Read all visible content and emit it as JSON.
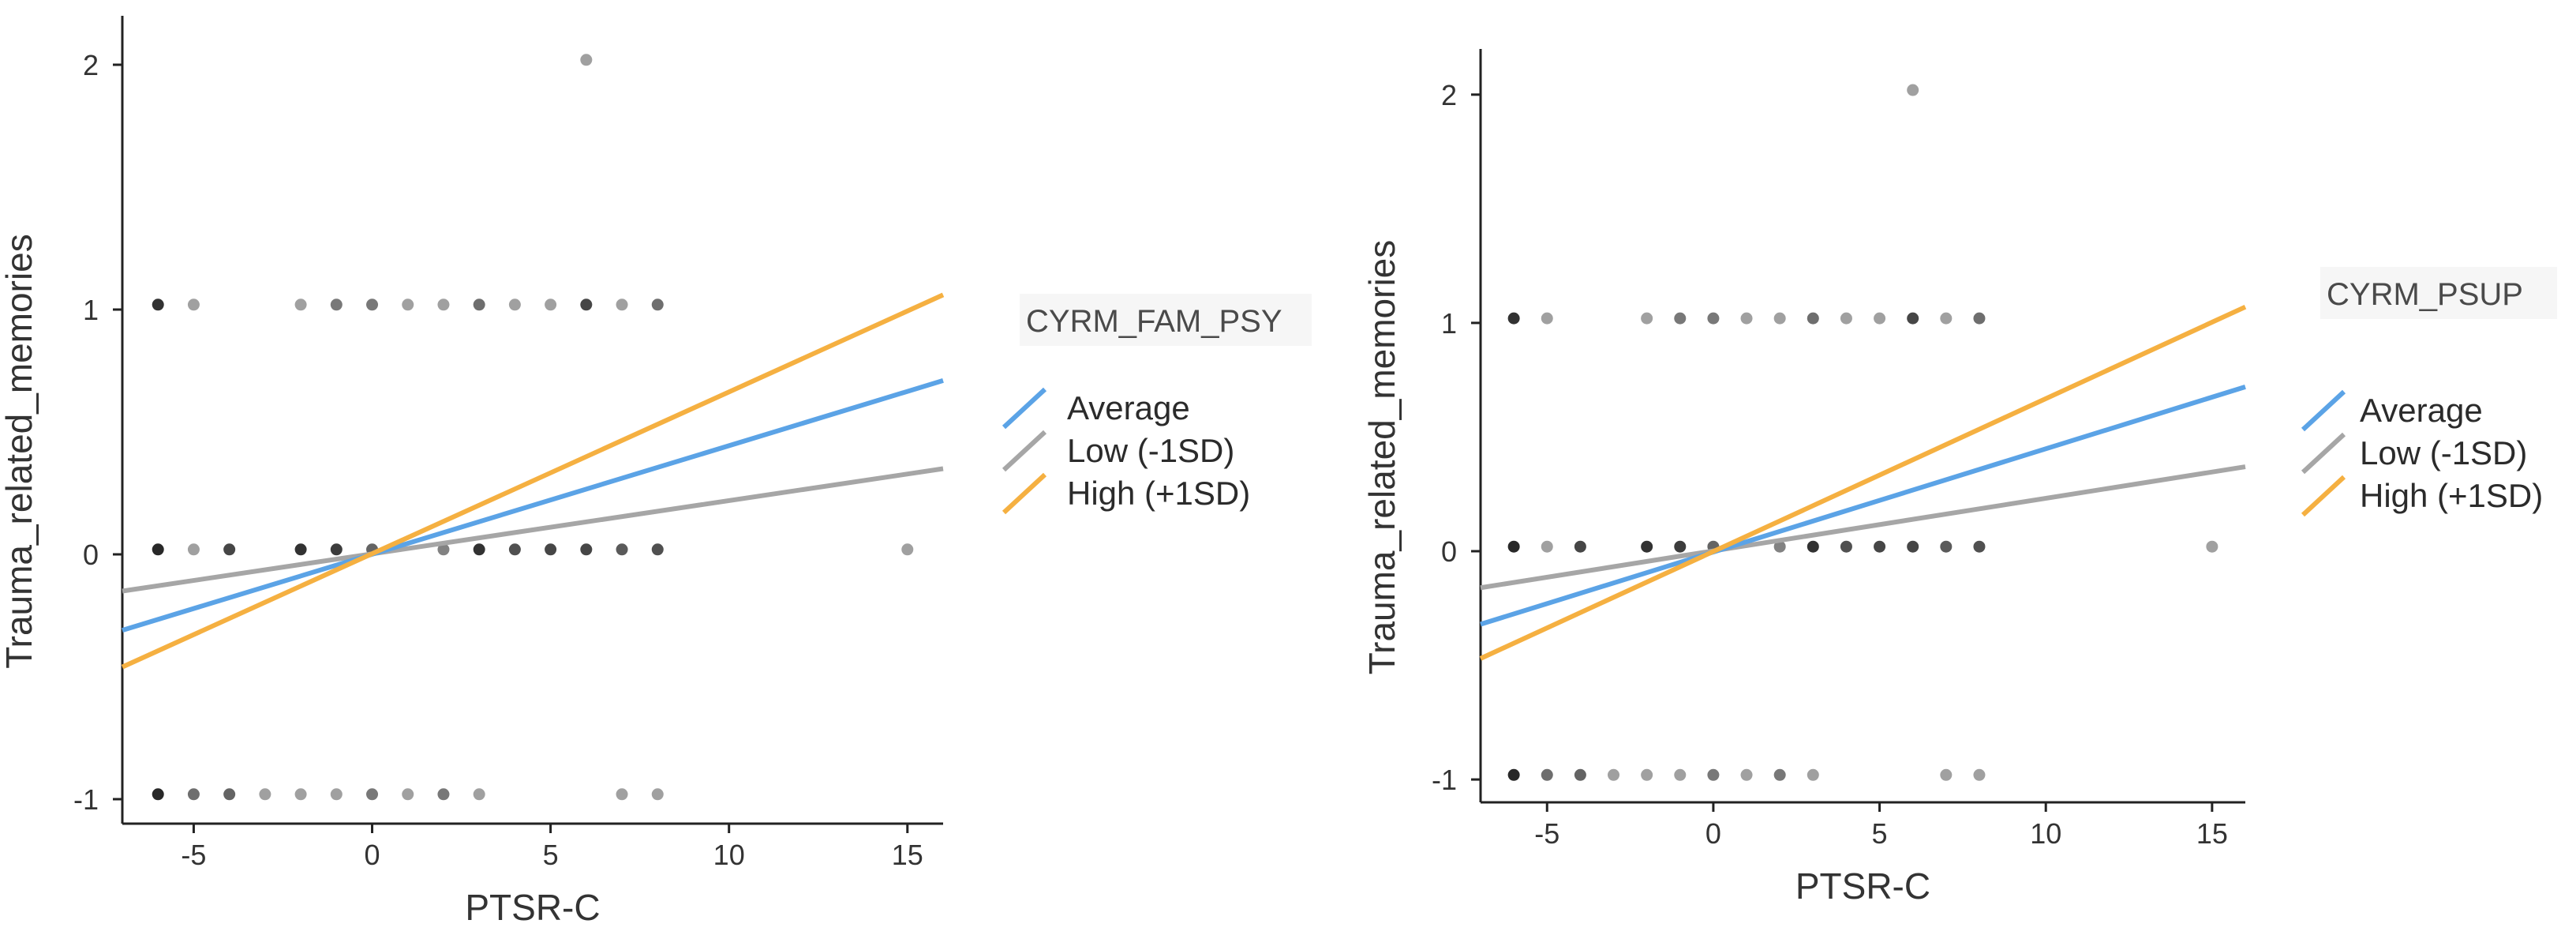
{
  "chart_data": [
    {
      "type": "scatter",
      "title": "",
      "xlabel": "PTSR-C",
      "ylabel": "Trauma_related_memories",
      "xlim": [
        -7,
        16
      ],
      "ylim": [
        -1.1,
        2.2
      ],
      "xticks": [
        -5,
        0,
        5,
        10,
        15
      ],
      "yticks": [
        -1,
        0,
        1,
        2
      ],
      "grid": false,
      "legend_title": "CYRM_FAM_PSY",
      "legend_position": "right",
      "series": [
        {
          "name": "Average",
          "type": "line",
          "color": "#5ba3e6",
          "x": [
            -7,
            16
          ],
          "y": [
            -0.31,
            0.71
          ]
        },
        {
          "name": "Low (-1SD)",
          "type": "line",
          "color": "#a6a6a6",
          "x": [
            -7,
            16
          ],
          "y": [
            -0.15,
            0.35
          ]
        },
        {
          "name": "High (+1SD)",
          "type": "line",
          "color": "#f5b041",
          "x": [
            -7,
            16
          ],
          "y": [
            -0.46,
            1.06
          ]
        }
      ],
      "points": [
        {
          "x": -6,
          "y": 1.02,
          "shade": 0.85
        },
        {
          "x": -5,
          "y": 1.02,
          "shade": 0.3
        },
        {
          "x": -2,
          "y": 1.02,
          "shade": 0.3
        },
        {
          "x": -1,
          "y": 1.02,
          "shade": 0.5
        },
        {
          "x": 0,
          "y": 1.02,
          "shade": 0.5
        },
        {
          "x": 1,
          "y": 1.02,
          "shade": 0.3
        },
        {
          "x": 2,
          "y": 1.02,
          "shade": 0.3
        },
        {
          "x": 3,
          "y": 1.02,
          "shade": 0.55
        },
        {
          "x": 4,
          "y": 1.02,
          "shade": 0.3
        },
        {
          "x": 5,
          "y": 1.02,
          "shade": 0.3
        },
        {
          "x": 6,
          "y": 1.02,
          "shade": 0.75
        },
        {
          "x": 7,
          "y": 1.02,
          "shade": 0.3
        },
        {
          "x": 8,
          "y": 1.02,
          "shade": 0.55
        },
        {
          "x": -6,
          "y": 0.02,
          "shade": 0.9
        },
        {
          "x": -5,
          "y": 0.02,
          "shade": 0.3
        },
        {
          "x": -4,
          "y": 0.02,
          "shade": 0.75
        },
        {
          "x": -2,
          "y": 0.02,
          "shade": 0.85
        },
        {
          "x": -1,
          "y": 0.02,
          "shade": 0.8
        },
        {
          "x": 0,
          "y": 0.02,
          "shade": 0.6
        },
        {
          "x": 2,
          "y": 0.02,
          "shade": 0.45
        },
        {
          "x": 3,
          "y": 0.02,
          "shade": 0.85
        },
        {
          "x": 4,
          "y": 0.02,
          "shade": 0.7
        },
        {
          "x": 5,
          "y": 0.02,
          "shade": 0.75
        },
        {
          "x": 6,
          "y": 0.02,
          "shade": 0.75
        },
        {
          "x": 7,
          "y": 0.02,
          "shade": 0.65
        },
        {
          "x": 8,
          "y": 0.02,
          "shade": 0.7
        },
        {
          "x": 15,
          "y": 0.02,
          "shade": 0.3
        },
        {
          "x": -6,
          "y": -0.98,
          "shade": 0.9
        },
        {
          "x": -5,
          "y": -0.98,
          "shade": 0.55
        },
        {
          "x": -4,
          "y": -0.98,
          "shade": 0.6
        },
        {
          "x": -3,
          "y": -0.98,
          "shade": 0.3
        },
        {
          "x": -2,
          "y": -0.98,
          "shade": 0.3
        },
        {
          "x": -1,
          "y": -0.98,
          "shade": 0.3
        },
        {
          "x": 0,
          "y": -0.98,
          "shade": 0.5
        },
        {
          "x": 1,
          "y": -0.98,
          "shade": 0.3
        },
        {
          "x": 2,
          "y": -0.98,
          "shade": 0.5
        },
        {
          "x": 3,
          "y": -0.98,
          "shade": 0.3
        },
        {
          "x": 7,
          "y": -0.98,
          "shade": 0.3
        },
        {
          "x": 8,
          "y": -0.98,
          "shade": 0.3
        },
        {
          "x": 6,
          "y": 2.02,
          "shade": 0.3
        }
      ]
    },
    {
      "type": "scatter",
      "title": "",
      "xlabel": "PTSR-C",
      "ylabel": "Trauma_related_memories",
      "xlim": [
        -7,
        16
      ],
      "ylim": [
        -1.1,
        2.2
      ],
      "xticks": [
        -5,
        0,
        5,
        10,
        15
      ],
      "yticks": [
        -1,
        0,
        1,
        2
      ],
      "grid": false,
      "legend_title": "CYRM_PSUP",
      "legend_position": "right",
      "series": [
        {
          "name": "Average",
          "type": "line",
          "color": "#5ba3e6",
          "x": [
            -7,
            16
          ],
          "y": [
            -0.32,
            0.72
          ]
        },
        {
          "name": "Low (-1SD)",
          "type": "line",
          "color": "#a6a6a6",
          "x": [
            -7,
            16
          ],
          "y": [
            -0.16,
            0.37
          ]
        },
        {
          "name": "High (+1SD)",
          "type": "line",
          "color": "#f5b041",
          "x": [
            -7,
            16
          ],
          "y": [
            -0.47,
            1.07
          ]
        }
      ],
      "points": [
        {
          "x": -6,
          "y": 1.02,
          "shade": 0.85
        },
        {
          "x": -5,
          "y": 1.02,
          "shade": 0.3
        },
        {
          "x": -2,
          "y": 1.02,
          "shade": 0.3
        },
        {
          "x": -1,
          "y": 1.02,
          "shade": 0.5
        },
        {
          "x": 0,
          "y": 1.02,
          "shade": 0.5
        },
        {
          "x": 1,
          "y": 1.02,
          "shade": 0.3
        },
        {
          "x": 2,
          "y": 1.02,
          "shade": 0.3
        },
        {
          "x": 3,
          "y": 1.02,
          "shade": 0.55
        },
        {
          "x": 4,
          "y": 1.02,
          "shade": 0.3
        },
        {
          "x": 5,
          "y": 1.02,
          "shade": 0.3
        },
        {
          "x": 6,
          "y": 1.02,
          "shade": 0.75
        },
        {
          "x": 7,
          "y": 1.02,
          "shade": 0.3
        },
        {
          "x": 8,
          "y": 1.02,
          "shade": 0.55
        },
        {
          "x": -6,
          "y": 0.02,
          "shade": 0.9
        },
        {
          "x": -5,
          "y": 0.02,
          "shade": 0.3
        },
        {
          "x": -4,
          "y": 0.02,
          "shade": 0.75
        },
        {
          "x": -2,
          "y": 0.02,
          "shade": 0.85
        },
        {
          "x": -1,
          "y": 0.02,
          "shade": 0.8
        },
        {
          "x": 0,
          "y": 0.02,
          "shade": 0.6
        },
        {
          "x": 2,
          "y": 0.02,
          "shade": 0.45
        },
        {
          "x": 3,
          "y": 0.02,
          "shade": 0.85
        },
        {
          "x": 4,
          "y": 0.02,
          "shade": 0.7
        },
        {
          "x": 5,
          "y": 0.02,
          "shade": 0.75
        },
        {
          "x": 6,
          "y": 0.02,
          "shade": 0.75
        },
        {
          "x": 7,
          "y": 0.02,
          "shade": 0.65
        },
        {
          "x": 8,
          "y": 0.02,
          "shade": 0.7
        },
        {
          "x": 15,
          "y": 0.02,
          "shade": 0.3
        },
        {
          "x": -6,
          "y": -0.98,
          "shade": 0.9
        },
        {
          "x": -5,
          "y": -0.98,
          "shade": 0.55
        },
        {
          "x": -4,
          "y": -0.98,
          "shade": 0.6
        },
        {
          "x": -3,
          "y": -0.98,
          "shade": 0.3
        },
        {
          "x": -2,
          "y": -0.98,
          "shade": 0.3
        },
        {
          "x": -1,
          "y": -0.98,
          "shade": 0.3
        },
        {
          "x": 0,
          "y": -0.98,
          "shade": 0.5
        },
        {
          "x": 1,
          "y": -0.98,
          "shade": 0.3
        },
        {
          "x": 2,
          "y": -0.98,
          "shade": 0.5
        },
        {
          "x": 3,
          "y": -0.98,
          "shade": 0.3
        },
        {
          "x": 7,
          "y": -0.98,
          "shade": 0.3
        },
        {
          "x": 8,
          "y": -0.98,
          "shade": 0.3
        },
        {
          "x": 6,
          "y": 2.02,
          "shade": 0.3
        }
      ]
    }
  ]
}
